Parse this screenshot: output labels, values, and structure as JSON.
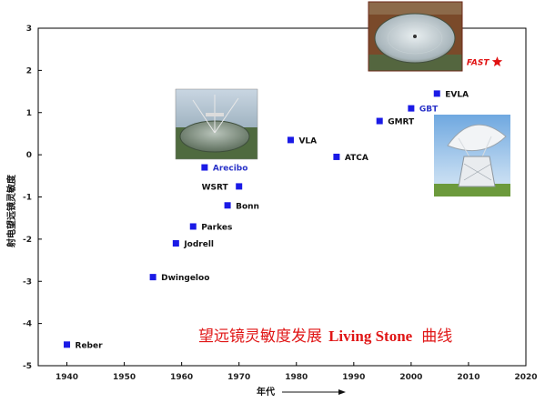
{
  "chart_data": {
    "type": "scatter",
    "xlabel": "年代",
    "ylabel": "射电望远镜灵敏度",
    "xlim": [
      1935,
      2020
    ],
    "ylim": [
      -5,
      3
    ],
    "x_ticks": [
      1940,
      1950,
      1960,
      1970,
      1980,
      1990,
      2000,
      2010,
      2020
    ],
    "y_ticks": [
      3,
      2,
      1,
      0,
      -1,
      -2,
      -3,
      -4,
      -5
    ],
    "grid": false,
    "points": [
      {
        "label": "Reber",
        "x": 1940,
        "y": -4.5,
        "color": "#1a1ae6",
        "label_color": "black",
        "marker": "square"
      },
      {
        "label": "Dwingeloo",
        "x": 1955,
        "y": -2.9,
        "color": "#1a1ae6",
        "label_color": "black",
        "marker": "square"
      },
      {
        "label": "Jodrell",
        "x": 1959,
        "y": -2.1,
        "color": "#1a1ae6",
        "label_color": "black",
        "marker": "square"
      },
      {
        "label": "Parkes",
        "x": 1962,
        "y": -1.7,
        "color": "#1a1ae6",
        "label_color": "black",
        "marker": "square"
      },
      {
        "label": "Bonn",
        "x": 1968,
        "y": -1.2,
        "color": "#1a1ae6",
        "label_color": "black",
        "marker": "square"
      },
      {
        "label": "WSRT",
        "x": 1970,
        "y": -0.75,
        "color": "#1a1ae6",
        "label_color": "black",
        "marker": "square"
      },
      {
        "label": "Arecibo",
        "x": 1964,
        "y": -0.3,
        "color": "#1a1ae6",
        "label_color": "blue",
        "marker": "square"
      },
      {
        "label": "VLA",
        "x": 1979,
        "y": 0.35,
        "color": "#1a1ae6",
        "label_color": "black",
        "marker": "square"
      },
      {
        "label": "ATCA",
        "x": 1987,
        "y": -0.05,
        "color": "#1a1ae6",
        "label_color": "black",
        "marker": "square"
      },
      {
        "label": "GMRT",
        "x": 1994.5,
        "y": 0.8,
        "color": "#1a1ae6",
        "label_color": "black",
        "marker": "square"
      },
      {
        "label": "GBT",
        "x": 2000,
        "y": 1.1,
        "color": "#1a1ae6",
        "label_color": "blue",
        "marker": "square"
      },
      {
        "label": "EVLA",
        "x": 2004.5,
        "y": 1.45,
        "color": "#1a1ae6",
        "label_color": "black",
        "marker": "square"
      },
      {
        "label": "FAST",
        "x": 2015,
        "y": 2.2,
        "color": "#e01212",
        "label_color": "red",
        "marker": "star"
      }
    ],
    "caption": {
      "zh_left": "望远镜灵敏度发展",
      "en": "Living Stone",
      "zh_right": "曲线"
    }
  }
}
